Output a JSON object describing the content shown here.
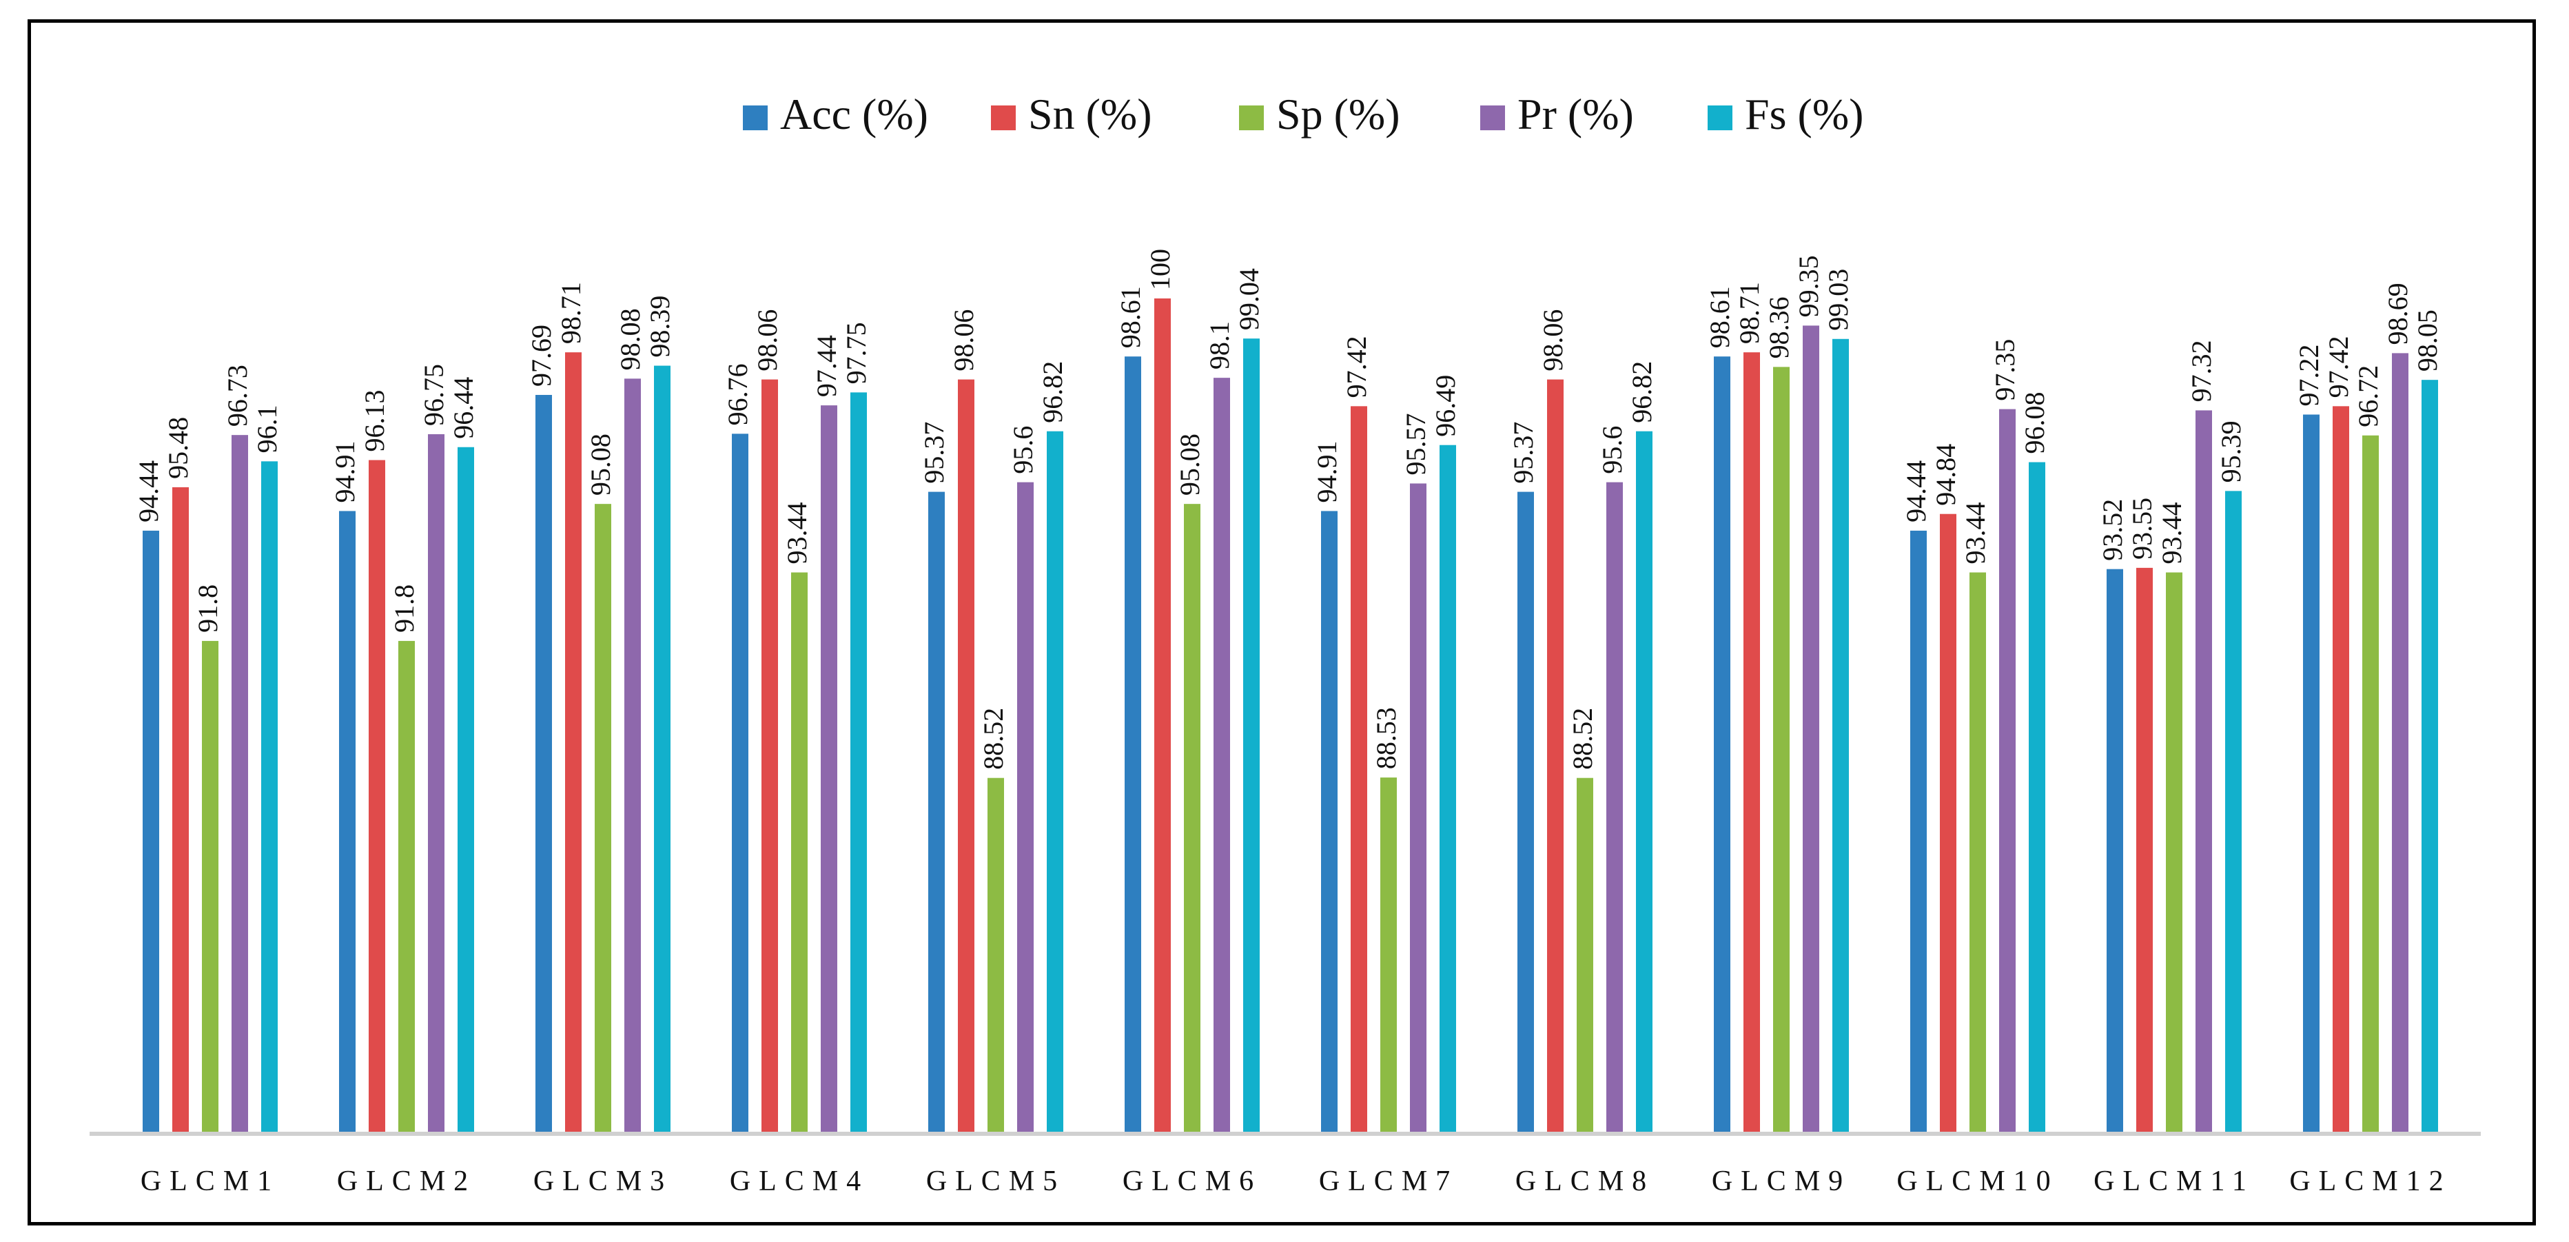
{
  "chart_data": {
    "type": "bar",
    "title": "",
    "xlabel": "",
    "ylabel": "",
    "ylim": [
      80,
      100
    ],
    "grid": false,
    "legend_position": "top-center",
    "categories": [
      "GLCM1",
      "GLCM2",
      "GLCM3",
      "GLCM4",
      "GLCM5",
      "GLCM6",
      "GLCM7",
      "GLCM8",
      "GLCM9",
      "GLCM10",
      "GLCM11",
      "GLCM12"
    ],
    "series": [
      {
        "name": "Acc (%)",
        "color": "#2e7fc0",
        "values": [
          94.44,
          94.91,
          97.69,
          96.76,
          95.37,
          98.61,
          94.91,
          95.37,
          98.61,
          94.44,
          93.52,
          97.22
        ]
      },
      {
        "name": "Sn (%)",
        "color": "#e04b4b",
        "values": [
          95.48,
          96.13,
          98.71,
          98.06,
          98.06,
          100,
          97.42,
          98.06,
          98.71,
          94.84,
          93.55,
          97.42
        ]
      },
      {
        "name": "Sp (%)",
        "color": "#8dbb44",
        "values": [
          91.8,
          91.8,
          95.08,
          93.44,
          88.52,
          95.08,
          88.53,
          88.52,
          98.36,
          93.44,
          93.44,
          96.72
        ]
      },
      {
        "name": "Pr (%)",
        "color": "#8e68ac",
        "values": [
          96.73,
          96.75,
          98.08,
          97.44,
          95.6,
          98.1,
          95.57,
          95.6,
          99.35,
          97.35,
          97.32,
          98.69
        ]
      },
      {
        "name": "Fs (%)",
        "color": "#12b0cc",
        "values": [
          96.1,
          96.44,
          98.39,
          97.75,
          96.82,
          99.04,
          96.49,
          96.82,
          99.03,
          96.08,
          95.39,
          98.05
        ]
      }
    ]
  }
}
